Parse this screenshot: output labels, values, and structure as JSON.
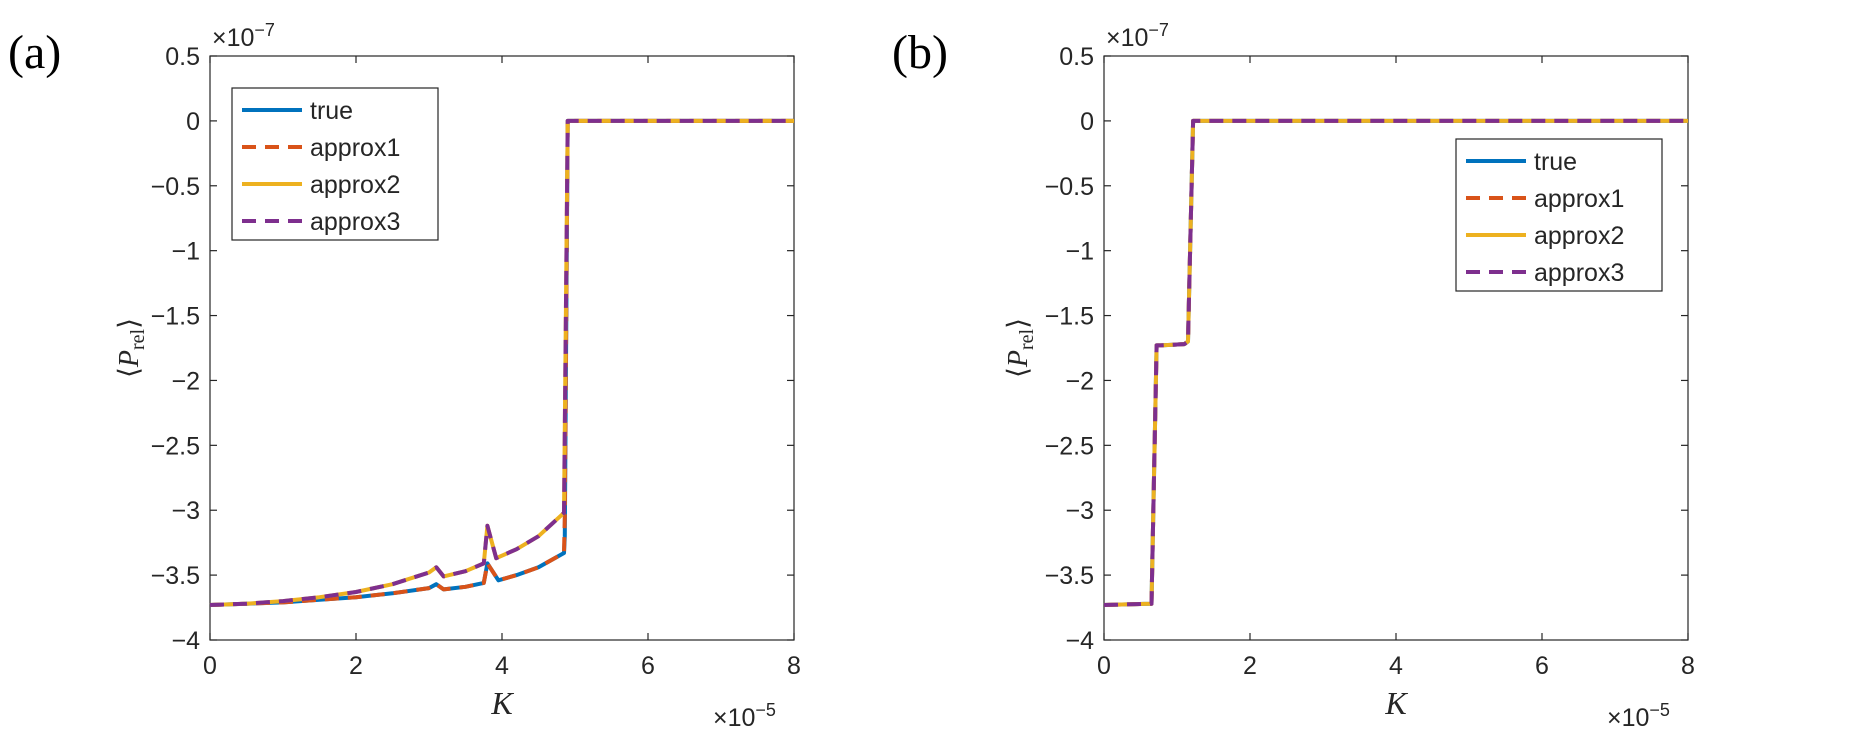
{
  "chart_data": [
    {
      "type": "line",
      "panel_label": "(a)",
      "xlabel": "K",
      "ylabel": "⟨P_rel⟩",
      "ylabel_main": "P",
      "ylabel_sub": "rel",
      "x_exponent": "×10",
      "x_exponent_power": "−5",
      "y_exponent": "×10",
      "y_exponent_power": "−7",
      "xlim": [
        0,
        8
      ],
      "ylim": [
        -4,
        0.5
      ],
      "xticks": [
        0,
        2,
        4,
        6,
        8
      ],
      "xtick_labels": [
        "0",
        "2",
        "4",
        "6",
        "8"
      ],
      "yticks": [
        -4,
        -3.5,
        -3,
        -2.5,
        -2,
        -1.5,
        -1,
        -0.5,
        0,
        0.5
      ],
      "ytick_labels": [
        "−4",
        "−3.5",
        "−3",
        "−2.5",
        "−2",
        "−1.5",
        "−1",
        "−0.5",
        "0",
        "0.5"
      ],
      "legend_position": "top-left",
      "series": [
        {
          "name": "true",
          "color": "#0072BD",
          "dash": "solid",
          "x": [
            0,
            0.5,
            1,
            1.5,
            2,
            2.5,
            3.0,
            3.1,
            3.2,
            3.5,
            3.75,
            3.8,
            3.95,
            4.2,
            4.5,
            4.85,
            4.86,
            4.9,
            8
          ],
          "y": [
            -3.73,
            -3.72,
            -3.71,
            -3.69,
            -3.67,
            -3.64,
            -3.6,
            -3.57,
            -3.61,
            -3.59,
            -3.56,
            -3.41,
            -3.54,
            -3.5,
            -3.44,
            -3.33,
            -3.2,
            0,
            0
          ]
        },
        {
          "name": "approx1",
          "color": "#D95319",
          "dash": "dashed",
          "x": [
            0,
            0.5,
            1,
            1.5,
            2,
            2.5,
            3.0,
            3.1,
            3.2,
            3.5,
            3.75,
            3.8,
            3.95,
            4.2,
            4.5,
            4.85,
            4.86,
            4.9,
            8
          ],
          "y": [
            -3.73,
            -3.72,
            -3.71,
            -3.69,
            -3.67,
            -3.64,
            -3.6,
            -3.57,
            -3.61,
            -3.59,
            -3.56,
            -3.41,
            -3.54,
            -3.5,
            -3.44,
            -3.33,
            -3.05,
            0,
            0
          ]
        },
        {
          "name": "approx2",
          "color": "#EDB120",
          "dash": "solid",
          "x": [
            0,
            0.5,
            1,
            1.5,
            2,
            2.5,
            3.0,
            3.1,
            3.2,
            3.5,
            3.75,
            3.8,
            3.92,
            4.2,
            4.5,
            4.85,
            4.9,
            8
          ],
          "y": [
            -3.73,
            -3.72,
            -3.7,
            -3.67,
            -3.63,
            -3.57,
            -3.48,
            -3.44,
            -3.51,
            -3.47,
            -3.41,
            -3.12,
            -3.37,
            -3.3,
            -3.2,
            -3.02,
            0,
            0
          ]
        },
        {
          "name": "approx3",
          "color": "#7E2F8E",
          "dash": "dashed",
          "x": [
            0,
            0.5,
            1,
            1.5,
            2,
            2.5,
            3.0,
            3.1,
            3.2,
            3.5,
            3.75,
            3.8,
            3.92,
            4.2,
            4.5,
            4.85,
            4.9,
            8
          ],
          "y": [
            -3.73,
            -3.72,
            -3.7,
            -3.67,
            -3.63,
            -3.57,
            -3.48,
            -3.44,
            -3.51,
            -3.47,
            -3.41,
            -3.12,
            -3.37,
            -3.3,
            -3.2,
            -3.02,
            0,
            0
          ]
        }
      ]
    },
    {
      "type": "line",
      "panel_label": "(b)",
      "xlabel": "K",
      "ylabel": "⟨P_rel⟩",
      "ylabel_main": "P",
      "ylabel_sub": "rel",
      "x_exponent": "×10",
      "x_exponent_power": "−5",
      "y_exponent": "×10",
      "y_exponent_power": "−7",
      "xlim": [
        0,
        8
      ],
      "ylim": [
        -4,
        0.5
      ],
      "xticks": [
        0,
        2,
        4,
        6,
        8
      ],
      "xtick_labels": [
        "0",
        "2",
        "4",
        "6",
        "8"
      ],
      "yticks": [
        -4,
        -3.5,
        -3,
        -2.5,
        -2,
        -1.5,
        -1,
        -0.5,
        0,
        0.5
      ],
      "ytick_labels": [
        "−4",
        "−3.5",
        "−3",
        "−2.5",
        "−2",
        "−1.5",
        "−1",
        "−0.5",
        "0",
        "0.5"
      ],
      "legend_position": "top-right",
      "series": [
        {
          "name": "true",
          "color": "#0072BD",
          "dash": "solid",
          "x": [
            0,
            0.65,
            0.72,
            0.78,
            1.1,
            1.15,
            1.22,
            8
          ],
          "y": [
            -3.73,
            -3.72,
            -1.73,
            -1.73,
            -1.72,
            -1.7,
            0,
            0
          ]
        },
        {
          "name": "approx1",
          "color": "#D95319",
          "dash": "dashed",
          "x": [
            0,
            0.65,
            0.72,
            0.78,
            1.1,
            1.15,
            1.22,
            8
          ],
          "y": [
            -3.73,
            -3.72,
            -1.73,
            -1.73,
            -1.72,
            -1.7,
            0,
            0
          ]
        },
        {
          "name": "approx2",
          "color": "#EDB120",
          "dash": "solid",
          "x": [
            0,
            0.65,
            0.72,
            0.78,
            1.1,
            1.15,
            1.22,
            8
          ],
          "y": [
            -3.73,
            -3.72,
            -1.73,
            -1.73,
            -1.72,
            -1.7,
            0,
            0
          ]
        },
        {
          "name": "approx3",
          "color": "#7E2F8E",
          "dash": "dashed",
          "x": [
            0,
            0.65,
            0.72,
            0.78,
            1.1,
            1.15,
            1.22,
            8
          ],
          "y": [
            -3.73,
            -3.72,
            -1.73,
            -1.73,
            -1.72,
            -1.7,
            0,
            0
          ]
        }
      ]
    }
  ]
}
